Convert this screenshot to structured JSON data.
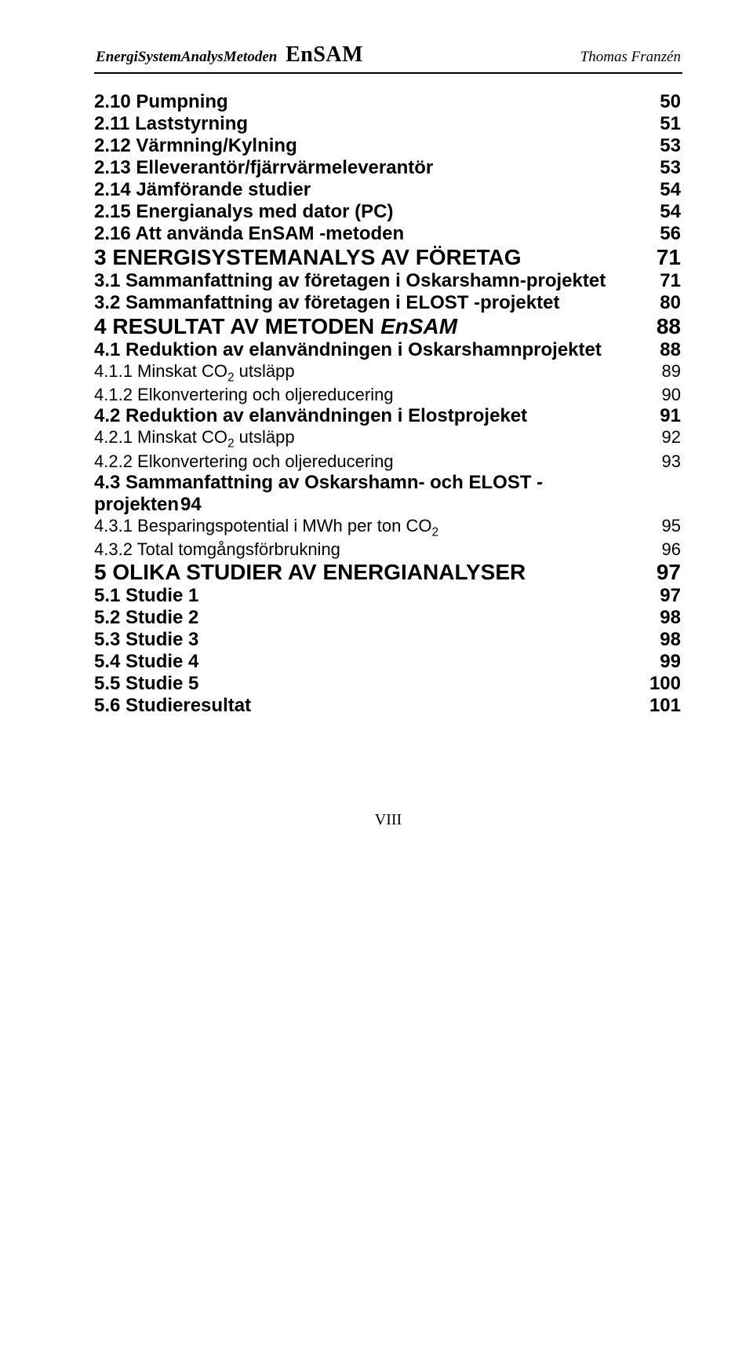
{
  "header": {
    "brand_letters": [
      "E",
      "n",
      "e",
      "r",
      "g",
      "i",
      "S",
      "y",
      "s",
      "t",
      "e",
      "m",
      "A",
      "n",
      "a",
      "l",
      "y",
      "s",
      "M",
      "e",
      "t",
      "o",
      "d",
      "e",
      "n"
    ],
    "brand_bold_indices": [
      0,
      6,
      12,
      18
    ],
    "brand_suffix": "EnSAM",
    "author": "Thomas Franzén"
  },
  "footer": {
    "folio": "VIII"
  },
  "toc": [
    {
      "level": "h2",
      "first": true,
      "num": "2.10",
      "title": "Pumpning",
      "page": "50"
    },
    {
      "level": "h2",
      "num": "2.11",
      "title": "Laststyrning",
      "page": "51"
    },
    {
      "level": "h2",
      "num": "2.12",
      "title": "Värmning/Kylning",
      "page": "53"
    },
    {
      "level": "h2",
      "num": "2.13",
      "title": "Elleverantör/fjärrvärmeleverantör",
      "page": "53"
    },
    {
      "level": "h2",
      "num": "2.14",
      "title": "Jämförande studier",
      "page": "54"
    },
    {
      "level": "h2",
      "num": "2.15",
      "title": "Energianalys med dator (PC)",
      "page": "54"
    },
    {
      "level": "h2",
      "num": "2.16",
      "title": "Att använda EnSAM -metoden",
      "page": "56"
    },
    {
      "level": "h1",
      "num": "3",
      "title": "ENERGISYSTEMANALYS AV FÖRETAG",
      "page": "71"
    },
    {
      "level": "h2",
      "num": "3.1",
      "title": "Sammanfattning av företagen i Oskarshamn-projektet",
      "page": "71"
    },
    {
      "level": "h2",
      "num": "3.2",
      "title": "Sammanfattning av företagen i ELOST -projektet",
      "page": "80"
    },
    {
      "level": "h1",
      "h1em": true,
      "num": "4",
      "title": "RESULTAT AV METODEN ",
      "title_em": "EnSAM",
      "page": "88"
    },
    {
      "level": "h2",
      "num": "4.1",
      "title": "Reduktion av elanvändningen i Oskarshamnprojektet",
      "page": "88"
    },
    {
      "level": "h3",
      "num": "4.1.1",
      "title": "Minskat CO",
      "sub": "2",
      "tail": " utsläpp",
      "page": "89"
    },
    {
      "level": "h3",
      "num": "4.1.2",
      "title": "Elkonvertering och oljereducering",
      "page": "90"
    },
    {
      "level": "h2",
      "num": "4.2",
      "title": "Reduktion av elanvändningen i Elostprojeket",
      "page": "91"
    },
    {
      "level": "h3",
      "num": "4.2.1",
      "title": "Minskat CO",
      "sub": "2",
      "tail": " utsläpp",
      "page": "92"
    },
    {
      "level": "h3",
      "num": "4.2.2",
      "title": "Elkonvertering och oljereducering",
      "page": "93"
    },
    {
      "level": "h2",
      "flow": true,
      "num": "4.3",
      "title": "Sammanfattning av Oskarshamn- och ELOST - projekten",
      "page": "94"
    },
    {
      "level": "h3",
      "num": "4.3.1",
      "title": "Besparingspotential i MWh per ton CO",
      "sub": "2",
      "page": "95"
    },
    {
      "level": "h3",
      "num": "4.3.2",
      "title": "Total tomgångsförbrukning",
      "page": "96"
    },
    {
      "level": "h1",
      "num": "5",
      "title": "OLIKA STUDIER AV ENERGIANALYSER",
      "page": "97"
    },
    {
      "level": "h2",
      "num": "5.1",
      "title": "Studie 1",
      "page": "97"
    },
    {
      "level": "h2",
      "num": "5.2",
      "title": "Studie 2",
      "page": "98"
    },
    {
      "level": "h2",
      "num": "5.3",
      "title": "Studie 3",
      "page": "98"
    },
    {
      "level": "h2",
      "num": "5.4",
      "title": "Studie 4",
      "page": "99"
    },
    {
      "level": "h2",
      "num": "5.5",
      "title": "Studie 5",
      "page": "100"
    },
    {
      "level": "h2",
      "num": "5.6",
      "title": "Studieresultat",
      "page": "101"
    }
  ]
}
